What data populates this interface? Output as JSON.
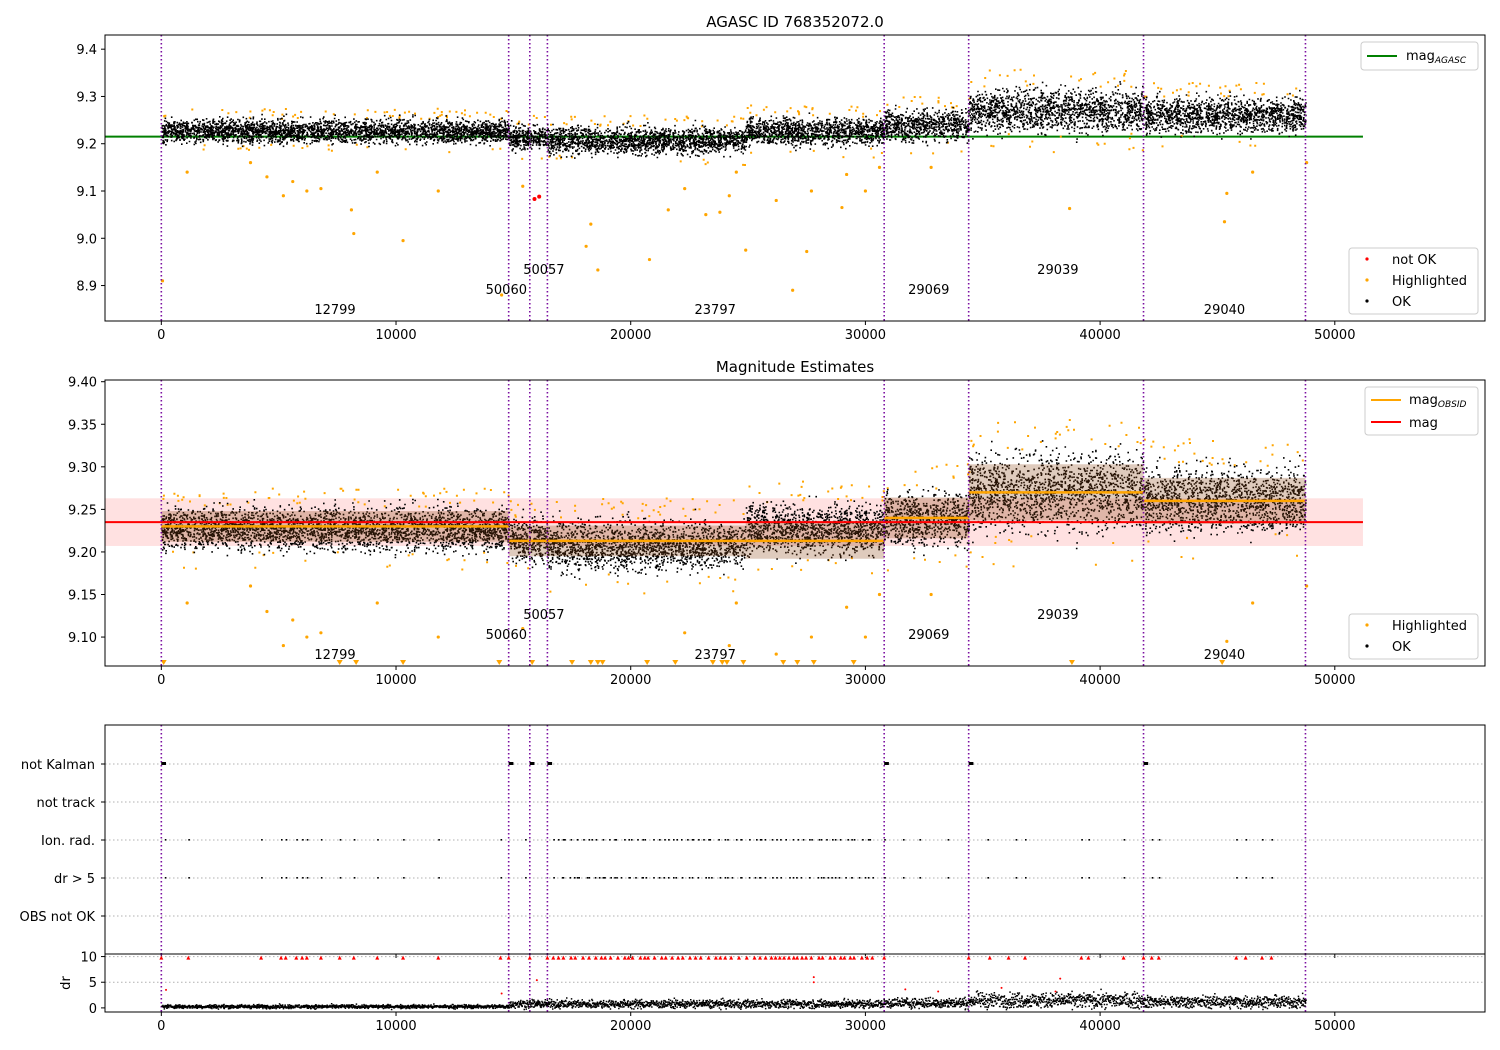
{
  "chart_data": [
    {
      "type": "scatter",
      "title": "AGASC ID 768352072.0",
      "xlim": [
        -2400,
        56400
      ],
      "ylim": [
        8.825,
        9.43
      ],
      "xticks": [
        0,
        10000,
        20000,
        30000,
        40000,
        50000
      ],
      "yticks": [
        8.9,
        9.0,
        9.1,
        9.2,
        9.3,
        9.4
      ],
      "xtick_labels": [
        "0",
        "10000",
        "20000",
        "30000",
        "40000",
        "50000"
      ],
      "ytick_labels": [
        "8.9",
        "9.0",
        "9.1",
        "9.2",
        "9.3",
        "9.4"
      ],
      "vlines": [
        0,
        14800,
        15700,
        16450,
        30800,
        34400,
        41850,
        48750
      ],
      "obsid_labels": [
        {
          "text": "12799",
          "x": 7400,
          "y": 8.85
        },
        {
          "text": "50060",
          "x": 14700,
          "y": 8.893
        },
        {
          "text": "50057",
          "x": 16300,
          "y": 8.935
        },
        {
          "text": "23797",
          "x": 23600,
          "y": 8.85
        },
        {
          "text": "29069",
          "x": 32700,
          "y": 8.893
        },
        {
          "text": "29039",
          "x": 38200,
          "y": 8.935
        },
        {
          "text": "29040",
          "x": 45300,
          "y": 8.85
        }
      ],
      "mag_agasc": 9.215,
      "mag_agasc_xrange": [
        -2400,
        51200
      ],
      "segments": [
        {
          "x": [
            0,
            14800
          ],
          "mean": 9.228,
          "spread": 0.012
        },
        {
          "x": [
            14800,
            16450
          ],
          "mean": 9.215,
          "spread": 0.012
        },
        {
          "x": [
            16450,
            24900
          ],
          "mean": 9.208,
          "spread": 0.014
        },
        {
          "x": [
            24900,
            30800
          ],
          "mean": 9.228,
          "spread": 0.014
        },
        {
          "x": [
            30800,
            34400
          ],
          "mean": 9.24,
          "spread": 0.016
        },
        {
          "x": [
            34400,
            41850
          ],
          "mean": 9.272,
          "spread": 0.022
        },
        {
          "x": [
            41850,
            48750
          ],
          "mean": 9.262,
          "spread": 0.018
        }
      ],
      "highlighted_points": [
        [
          50,
          8.91
        ],
        [
          1100,
          9.14
        ],
        [
          3800,
          9.16
        ],
        [
          4500,
          9.13
        ],
        [
          5200,
          9.09
        ],
        [
          5600,
          9.12
        ],
        [
          6200,
          9.1
        ],
        [
          6800,
          9.105
        ],
        [
          8100,
          9.06
        ],
        [
          8200,
          9.01
        ],
        [
          9200,
          9.14
        ],
        [
          10300,
          8.995
        ],
        [
          11800,
          9.1
        ],
        [
          14500,
          8.88
        ],
        [
          15400,
          9.11
        ],
        [
          18100,
          8.983
        ],
        [
          18300,
          9.03
        ],
        [
          18600,
          8.933
        ],
        [
          20800,
          8.955
        ],
        [
          21600,
          9.06
        ],
        [
          22300,
          9.105
        ],
        [
          23200,
          9.05
        ],
        [
          23800,
          9.055
        ],
        [
          24200,
          9.09
        ],
        [
          24500,
          9.14
        ],
        [
          24900,
          8.975
        ],
        [
          26200,
          9.08
        ],
        [
          26900,
          8.89
        ],
        [
          27500,
          8.972
        ],
        [
          27700,
          9.1
        ],
        [
          29000,
          9.065
        ],
        [
          29200,
          9.135
        ],
        [
          30000,
          9.1
        ],
        [
          30600,
          9.15
        ],
        [
          32800,
          9.15
        ],
        [
          38700,
          9.063
        ],
        [
          45300,
          9.035
        ],
        [
          45400,
          9.095
        ],
        [
          46500,
          9.14
        ],
        [
          48800,
          9.16
        ]
      ],
      "not_ok_points": [
        [
          15900,
          9.083
        ],
        [
          16100,
          9.088
        ]
      ],
      "legend_top": [
        {
          "label": "mag",
          "sub": "AGASC",
          "color": "#008000"
        }
      ],
      "legend_bottom": [
        {
          "label": "not OK",
          "color": "#ff0000"
        },
        {
          "label": "Highlighted",
          "color": "#ffa500"
        },
        {
          "label": "OK",
          "color": "#000000"
        }
      ]
    },
    {
      "type": "scatter",
      "title": "Magnitude Estimates",
      "xlim": [
        -2400,
        56400
      ],
      "ylim": [
        9.066,
        9.402
      ],
      "xticks": [
        0,
        10000,
        20000,
        30000,
        40000,
        50000
      ],
      "yticks": [
        9.1,
        9.15,
        9.2,
        9.25,
        9.3,
        9.35,
        9.4
      ],
      "xtick_labels": [
        "0",
        "10000",
        "20000",
        "30000",
        "40000",
        "50000"
      ],
      "ytick_labels": [
        "9.10",
        "9.15",
        "9.20",
        "9.25",
        "9.30",
        "9.35",
        "9.40"
      ],
      "mag": 9.235,
      "mag_band": [
        9.207,
        9.263
      ],
      "mag_xrange": [
        -2400,
        51200
      ],
      "mag_obsid": [
        {
          "x": [
            0,
            14800
          ],
          "y": 9.23
        },
        {
          "x": [
            14800,
            24900
          ],
          "y": 9.213
        },
        {
          "x": [
            24900,
            30800
          ],
          "y": 9.213
        },
        {
          "x": [
            30800,
            34400
          ],
          "y": 9.24
        },
        {
          "x": [
            34400,
            41850
          ],
          "y": 9.27
        },
        {
          "x": [
            41850,
            48750
          ],
          "y": 9.26
        }
      ],
      "clipped_points_x": [
        100,
        7600,
        8300,
        10300,
        14400,
        15800,
        17500,
        18300,
        18600,
        18800,
        20700,
        21900,
        23500,
        23900,
        24100,
        24800,
        26500,
        27100,
        27800,
        29500,
        38800,
        45200
      ],
      "legend_top": [
        {
          "label": "mag",
          "sub": "OBSID",
          "color": "#ffa500"
        },
        {
          "label": "mag",
          "sub": "",
          "color": "#ff0000"
        }
      ],
      "legend_bottom": [
        {
          "label": "Highlighted",
          "color": "#ffa500"
        },
        {
          "label": "OK",
          "color": "#000000"
        }
      ]
    },
    {
      "type": "scatter",
      "title": "",
      "xlim": [
        -2400,
        56400
      ],
      "flag_labels": [
        "not Kalman",
        "not track",
        "Ion. rad.",
        "dr > 5",
        "OBS not OK"
      ],
      "not_kalman_x": [
        0,
        14800,
        15700,
        16450,
        30800,
        34400,
        41850
      ],
      "ion_rad_x": [
        150,
        1150,
        4250,
        5100,
        5300,
        5750,
        6000,
        6200,
        6800,
        7600,
        8200,
        9200,
        10300,
        11800,
        14450,
        15500,
        16700,
        17100,
        17700,
        18200,
        18800,
        19300,
        19900,
        20500,
        21200,
        21800,
        22600,
        23300,
        24000,
        24700,
        25500,
        26200,
        26900,
        27600,
        28100,
        28700,
        29400,
        30100,
        31600,
        32300,
        33500,
        35200,
        36400,
        36800,
        39200,
        39500,
        41000,
        42200,
        42500,
        45800,
        46200,
        46900,
        47300
      ],
      "dr_yticks": [
        0,
        5,
        10
      ],
      "dr_ylim": [
        -0.8,
        10.5
      ],
      "dr_ylabel": "dr",
      "dr_clipped_x": [
        0,
        1150,
        4250,
        5100,
        5300,
        5750,
        6000,
        6200,
        6800,
        7600,
        8200,
        9200,
        10300,
        11800,
        14450,
        14800,
        15700,
        16450,
        30800,
        34400,
        35300,
        36100,
        36800,
        39200,
        39500,
        41000,
        41850,
        42200,
        42500,
        45800,
        46200,
        46900,
        47300
      ],
      "dr_mid_points": [
        [
          200,
          3.5
        ],
        [
          14500,
          2.8
        ],
        [
          16000,
          5.4
        ],
        [
          27800,
          6.0
        ],
        [
          27800,
          5.0
        ],
        [
          31700,
          3.6
        ],
        [
          33100,
          3.2
        ],
        [
          35800,
          3.9
        ],
        [
          38300,
          5.7
        ],
        [
          38100,
          3.2
        ]
      ]
    }
  ]
}
